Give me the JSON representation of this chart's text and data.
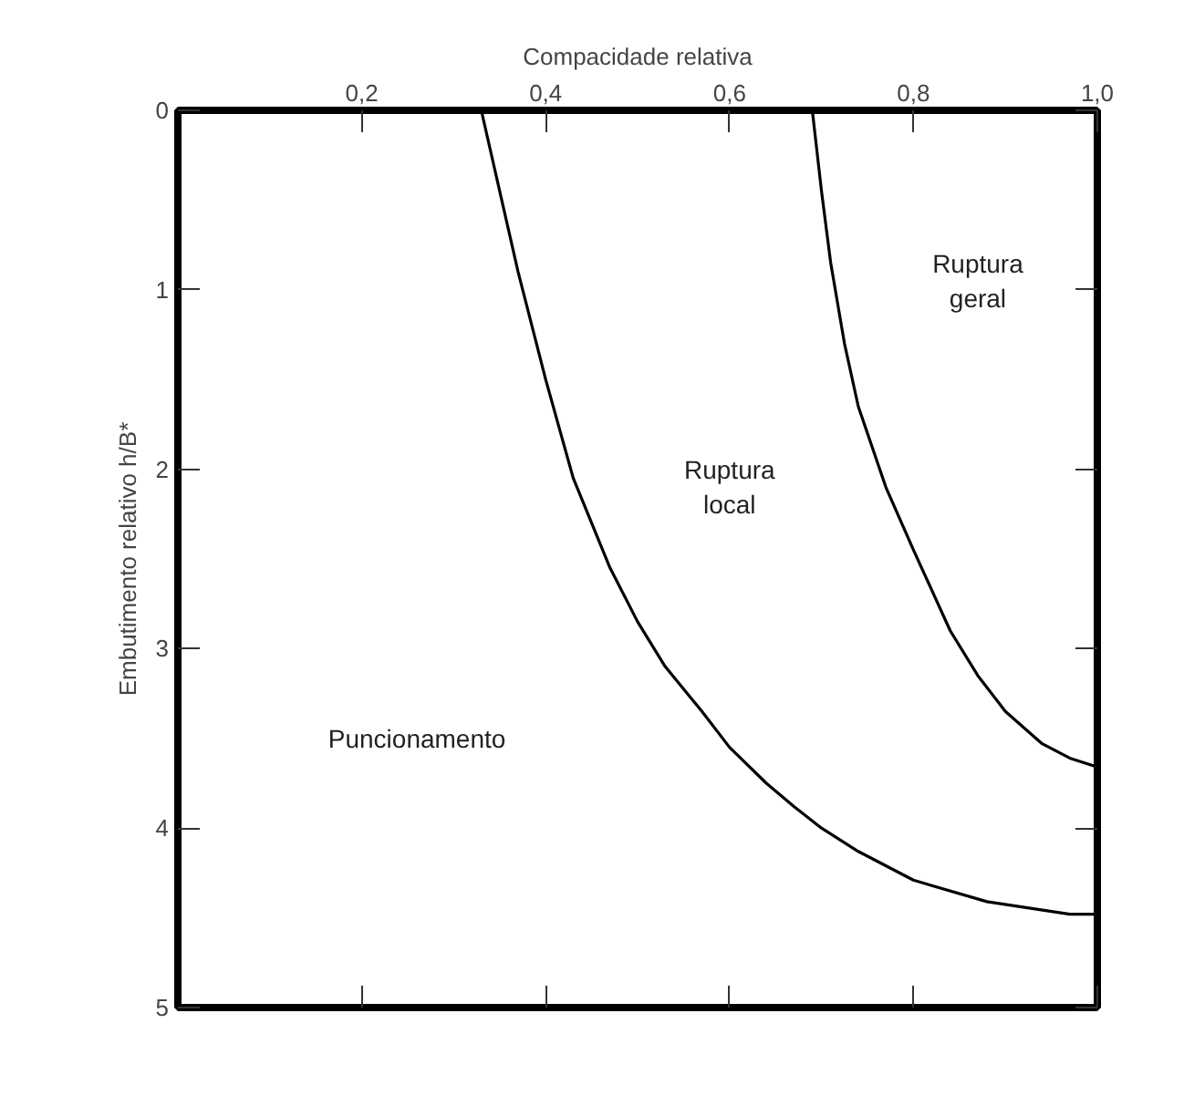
{
  "chart_data": {
    "type": "line",
    "xlabel": "Compacidade relativa",
    "ylabel": "Embutimento relativo h/B*",
    "xlim": [
      0,
      1.0
    ],
    "ylim": [
      5,
      0
    ],
    "xticks": [
      {
        "value": 0.2,
        "label": "0,2"
      },
      {
        "value": 0.4,
        "label": "0,4"
      },
      {
        "value": 0.6,
        "label": "0,6"
      },
      {
        "value": 0.8,
        "label": "0,8"
      },
      {
        "value": 1.0,
        "label": "1,0"
      }
    ],
    "yticks": [
      0,
      1,
      2,
      3,
      4,
      5
    ],
    "grid": false,
    "marker": "none",
    "line_style": "solid",
    "series": [
      {
        "color": "#000000",
        "x": [
          0.33,
          0.35,
          0.37,
          0.4,
          0.43,
          0.47,
          0.5,
          0.53,
          0.57,
          0.6,
          0.64,
          0.67,
          0.7,
          0.74,
          0.8,
          0.88,
          0.97,
          1.0
        ],
        "values": [
          0,
          0.45,
          0.9,
          1.5,
          2.05,
          2.55,
          2.85,
          3.1,
          3.35,
          3.55,
          3.75,
          3.88,
          4.0,
          4.13,
          4.29,
          4.41,
          4.48,
          4.48
        ]
      },
      {
        "color": "#000000",
        "x": [
          0.69,
          0.7,
          0.71,
          0.725,
          0.74,
          0.77,
          0.8,
          0.84,
          0.87,
          0.9,
          0.94,
          0.97,
          1.0
        ],
        "values": [
          0,
          0.45,
          0.85,
          1.3,
          1.65,
          2.1,
          2.45,
          2.9,
          3.15,
          3.35,
          3.53,
          3.61,
          3.66
        ]
      }
    ],
    "annotations": [
      "Ruptura\ngeral",
      "Ruptura\nlocal",
      "Puncionamento"
    ]
  }
}
